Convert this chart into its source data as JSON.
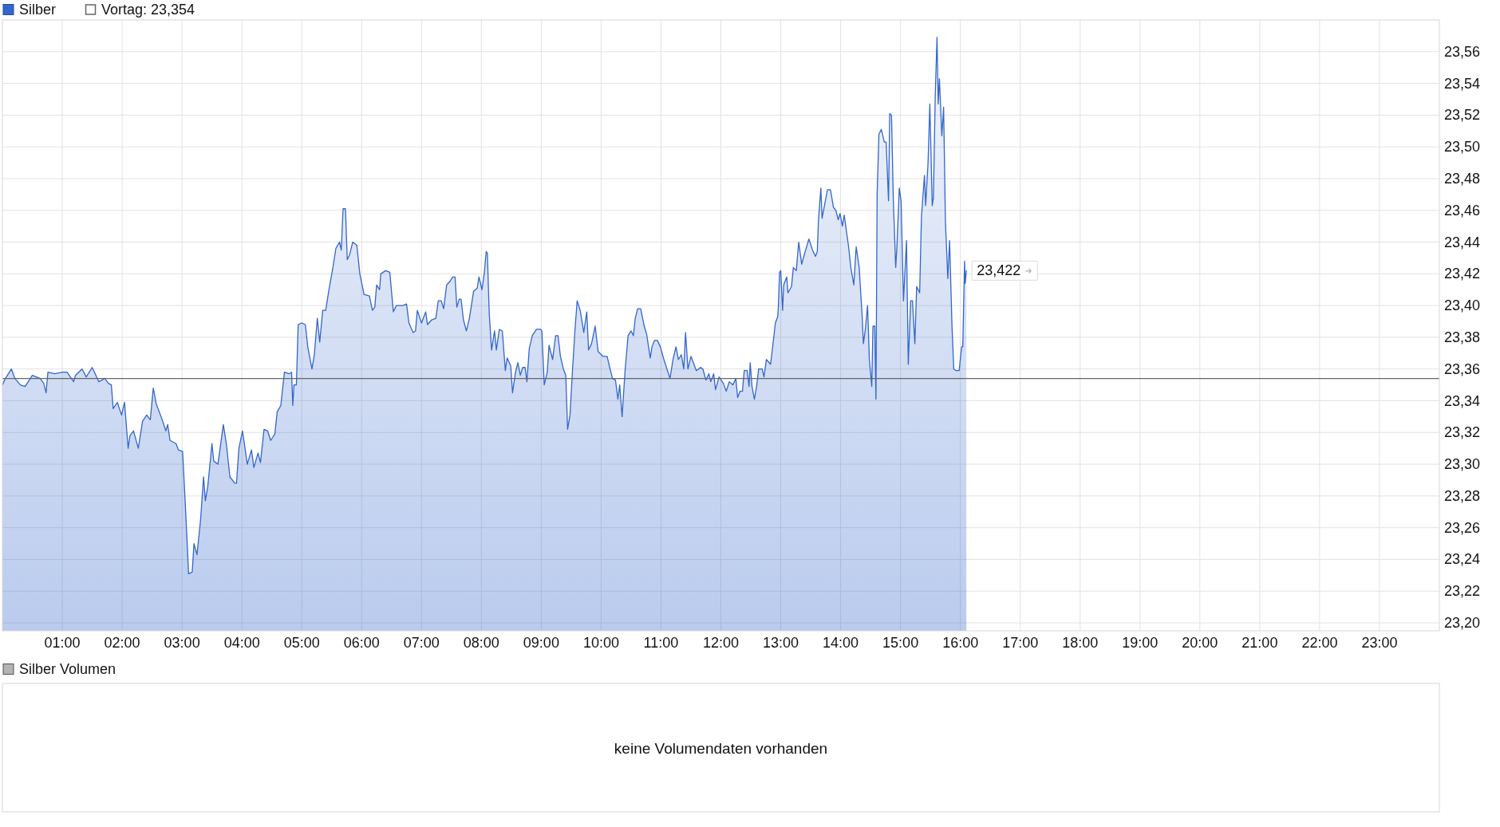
{
  "chart_data": [
    {
      "type": "area",
      "legend": "top left",
      "grid": true,
      "x": [
        0,
        0.05,
        0.15,
        0.21,
        0.3,
        0.38,
        0.5,
        0.63,
        0.69,
        0.73,
        0.76,
        0.87,
        1.01,
        1.08,
        1.19,
        1.22,
        1.33,
        1.4,
        1.5,
        1.61,
        1.71,
        1.77,
        1.82,
        1.85,
        1.92,
        1.99,
        2.04,
        2.1,
        2.13,
        2.19,
        2.27,
        2.34,
        2.41,
        2.47,
        2.52,
        2.57,
        2.66,
        2.73,
        2.76,
        2.8,
        2.9,
        2.94,
        3.01,
        3.06,
        3.11,
        3.17,
        3.2,
        3.25,
        3.31,
        3.36,
        3.39,
        3.43,
        3.5,
        3.53,
        3.6,
        3.69,
        3.74,
        3.8,
        3.88,
        3.91,
        3.95,
        4.01,
        4.06,
        4.09,
        4.16,
        4.2,
        4.27,
        4.31,
        4.37,
        4.43,
        4.48,
        4.55,
        4.59,
        4.65,
        4.71,
        4.79,
        4.83,
        4.85,
        4.87,
        4.91,
        4.94,
        5,
        5.06,
        5.1,
        5.17,
        5.21,
        5.26,
        5.3,
        5.35,
        5.4,
        5.45,
        5.52,
        5.57,
        5.63,
        5.66,
        5.69,
        5.73,
        5.76,
        5.8,
        5.85,
        5.92,
        5.97,
        6.04,
        6.13,
        6.18,
        6.22,
        6.25,
        6.3,
        6.32,
        6.4,
        6.47,
        6.53,
        6.58,
        6.69,
        6.75,
        6.79,
        6.86,
        6.9,
        6.93,
        7,
        7.07,
        7.1,
        7.17,
        7.24,
        7.28,
        7.33,
        7.37,
        7.42,
        7.47,
        7.52,
        7.56,
        7.59,
        7.63,
        7.66,
        7.7,
        7.75,
        7.8,
        7.87,
        7.93,
        7.96,
        8.01,
        8.05,
        8.08,
        8.1,
        8.13,
        8.17,
        8.22,
        8.25,
        8.3,
        8.35,
        8.4,
        8.43,
        8.49,
        8.52,
        8.57,
        8.61,
        8.65,
        8.69,
        8.73,
        8.76,
        8.8,
        8.85,
        8.92,
        8.99,
        9.01,
        9.05,
        9.1,
        9.13,
        9.19,
        9.24,
        9.28,
        9.32,
        9.37,
        9.41,
        9.44,
        9.48,
        9.52,
        9.56,
        9.6,
        9.65,
        9.71,
        9.76,
        9.79,
        9.84,
        9.9,
        9.95,
        10.03,
        10.1,
        10.15,
        10.19,
        10.24,
        10.28,
        10.31,
        10.35,
        10.4,
        10.45,
        10.5,
        10.54,
        10.57,
        10.61,
        10.66,
        10.72,
        10.76,
        10.82,
        10.85,
        10.89,
        10.94,
        10.99,
        11.04,
        11.1,
        11.15,
        11.2,
        11.25,
        11.29,
        11.34,
        11.38,
        11.41,
        11.45,
        11.5,
        11.55,
        11.59,
        11.66,
        11.7,
        11.75,
        11.8,
        11.83,
        11.88,
        11.91,
        11.97,
        12.04,
        12.09,
        12.14,
        12.2,
        12.25,
        12.28,
        12.32,
        12.36,
        12.39,
        12.44,
        12.47,
        12.49,
        12.52,
        12.56,
        12.6,
        12.63,
        12.69,
        12.72,
        12.76,
        12.83,
        12.88,
        12.91,
        12.95,
        12.96,
        12.98,
        13,
        13.03,
        13.05,
        13.1,
        13.12,
        13.18,
        13.21,
        13.26,
        13.3,
        13.35,
        13.4,
        13.47,
        13.53,
        13.58,
        13.61,
        13.63,
        13.67,
        13.69,
        13.73,
        13.78,
        13.83,
        13.88,
        13.92,
        13.96,
        13.99,
        14.03,
        14.06,
        14.1,
        14.13,
        14.17,
        14.22,
        14.26,
        14.31,
        14.36,
        14.38,
        14.41,
        14.45,
        14.48,
        14.52,
        14.54,
        14.57,
        14.59,
        14.61,
        14.64,
        14.68,
        14.73,
        14.76,
        14.8,
        14.82,
        14.85,
        14.88,
        14.92,
        14.94,
        14.98,
        15.01,
        15.05,
        15.1,
        15.13,
        15.17,
        15.2,
        15.24,
        15.27,
        15.32,
        15.35,
        15.4,
        15.42,
        15.46,
        15.49,
        15.53,
        15.55,
        15.58,
        15.61,
        15.63,
        15.65,
        15.69,
        15.72,
        15.75,
        15.79,
        15.82,
        15.86,
        15.89,
        15.93,
        15.98,
        16.02,
        16.04,
        16.07,
        16.08,
        16.1
      ],
      "series": [
        {
          "name": "Silber",
          "color": "#3366cc",
          "values": [
            23.35,
            23.354,
            23.36,
            23.354,
            23.35,
            23.349,
            23.356,
            23.354,
            23.351,
            23.345,
            23.358,
            23.357,
            23.358,
            23.358,
            23.352,
            23.356,
            23.36,
            23.355,
            23.361,
            23.352,
            23.354,
            23.351,
            23.35,
            23.335,
            23.339,
            23.331,
            23.339,
            23.31,
            23.318,
            23.321,
            23.31,
            23.327,
            23.331,
            23.328,
            23.348,
            23.338,
            23.329,
            23.321,
            23.325,
            23.315,
            23.313,
            23.309,
            23.308,
            23.271,
            23.231,
            23.232,
            23.25,
            23.243,
            23.265,
            23.292,
            23.277,
            23.286,
            23.313,
            23.302,
            23.3,
            23.325,
            23.313,
            23.292,
            23.288,
            23.288,
            23.31,
            23.321,
            23.308,
            23.3,
            23.309,
            23.298,
            23.307,
            23.301,
            23.322,
            23.321,
            23.315,
            23.319,
            23.333,
            23.337,
            23.358,
            23.357,
            23.358,
            23.337,
            23.35,
            23.35,
            23.388,
            23.389,
            23.388,
            23.374,
            23.36,
            23.369,
            23.392,
            23.377,
            23.397,
            23.397,
            23.409,
            23.424,
            23.436,
            23.44,
            23.435,
            23.461,
            23.461,
            23.429,
            23.432,
            23.44,
            23.438,
            23.42,
            23.407,
            23.406,
            23.397,
            23.399,
            23.413,
            23.41,
            23.42,
            23.422,
            23.421,
            23.396,
            23.4,
            23.4,
            23.401,
            23.389,
            23.383,
            23.384,
            23.397,
            23.389,
            23.396,
            23.388,
            23.391,
            23.392,
            23.403,
            23.403,
            23.398,
            23.413,
            23.415,
            23.418,
            23.418,
            23.399,
            23.404,
            23.404,
            23.391,
            23.384,
            23.392,
            23.409,
            23.411,
            23.418,
            23.41,
            23.421,
            23.434,
            23.433,
            23.396,
            23.372,
            23.384,
            23.372,
            23.385,
            23.384,
            23.359,
            23.367,
            23.362,
            23.345,
            23.358,
            23.364,
            23.356,
            23.361,
            23.361,
            23.352,
            23.373,
            23.381,
            23.385,
            23.385,
            23.384,
            23.35,
            23.358,
            23.375,
            23.366,
            23.381,
            23.381,
            23.368,
            23.36,
            23.356,
            23.322,
            23.331,
            23.358,
            23.383,
            23.403,
            23.397,
            23.383,
            23.396,
            23.372,
            23.376,
            23.387,
            23.371,
            23.368,
            23.368,
            23.36,
            23.354,
            23.353,
            23.341,
            23.35,
            23.33,
            23.359,
            23.381,
            23.384,
            23.381,
            23.392,
            23.398,
            23.398,
            23.387,
            23.382,
            23.367,
            23.374,
            23.378,
            23.378,
            23.374,
            23.367,
            23.36,
            23.354,
            23.366,
            23.374,
            23.366,
            23.369,
            23.36,
            23.383,
            23.36,
            23.368,
            23.363,
            23.359,
            23.361,
            23.36,
            23.353,
            23.357,
            23.352,
            23.357,
            23.347,
            23.355,
            23.351,
            23.346,
            23.352,
            23.35,
            23.354,
            23.342,
            23.346,
            23.346,
            23.359,
            23.359,
            23.349,
            23.364,
            23.349,
            23.341,
            23.35,
            23.36,
            23.36,
            23.355,
            23.366,
            23.363,
            23.379,
            23.389,
            23.393,
            23.399,
            23.421,
            23.422,
            23.397,
            23.413,
            23.418,
            23.408,
            23.412,
            23.424,
            23.422,
            23.44,
            23.426,
            23.433,
            23.442,
            23.435,
            23.431,
            23.434,
            23.454,
            23.474,
            23.455,
            23.463,
            23.473,
            23.473,
            23.462,
            23.46,
            23.454,
            23.458,
            23.45,
            23.457,
            23.446,
            23.438,
            23.424,
            23.413,
            23.437,
            23.424,
            23.393,
            23.376,
            23.384,
            23.4,
            23.366,
            23.349,
            23.387,
            23.387,
            23.341,
            23.471,
            23.508,
            23.511,
            23.503,
            23.503,
            23.466,
            23.521,
            23.52,
            23.467,
            23.424,
            23.437,
            23.474,
            23.466,
            23.403,
            23.441,
            23.363,
            23.403,
            23.403,
            23.376,
            23.412,
            23.408,
            23.456,
            23.482,
            23.463,
            23.49,
            23.527,
            23.463,
            23.468,
            23.532,
            23.569,
            23.527,
            23.543,
            23.507,
            23.525,
            23.453,
            23.417,
            23.441,
            23.387,
            23.36,
            23.359,
            23.359,
            23.374,
            23.374,
            23.428,
            23.414,
            23.422
          ]
        }
      ],
      "xlim": [
        0,
        24
      ],
      "xticks": [
        {
          "value": 1,
          "label": "01:00"
        },
        {
          "value": 2,
          "label": "02:00"
        },
        {
          "value": 3,
          "label": "03:00"
        },
        {
          "value": 4,
          "label": "04:00"
        },
        {
          "value": 5,
          "label": "05:00"
        },
        {
          "value": 6,
          "label": "06:00"
        },
        {
          "value": 7,
          "label": "07:00"
        },
        {
          "value": 8,
          "label": "08:00"
        },
        {
          "value": 9,
          "label": "09:00"
        },
        {
          "value": 10,
          "label": "10:00"
        },
        {
          "value": 11,
          "label": "11:00"
        },
        {
          "value": 12,
          "label": "12:00"
        },
        {
          "value": 13,
          "label": "13:00"
        },
        {
          "value": 14,
          "label": "14:00"
        },
        {
          "value": 15,
          "label": "15:00"
        },
        {
          "value": 16,
          "label": "16:00"
        },
        {
          "value": 17,
          "label": "17:00"
        },
        {
          "value": 18,
          "label": "18:00"
        },
        {
          "value": 19,
          "label": "19:00"
        },
        {
          "value": 20,
          "label": "20:00"
        },
        {
          "value": 21,
          "label": "21:00"
        },
        {
          "value": 22,
          "label": "22:00"
        },
        {
          "value": 23,
          "label": "23:00"
        }
      ],
      "ylim": [
        23.195,
        23.58
      ],
      "yticks": [
        {
          "value": 23.2,
          "label": "23,20"
        },
        {
          "value": 23.22,
          "label": "23,22"
        },
        {
          "value": 23.24,
          "label": "23,24"
        },
        {
          "value": 23.26,
          "label": "23,26"
        },
        {
          "value": 23.28,
          "label": "23,28"
        },
        {
          "value": 23.3,
          "label": "23,30"
        },
        {
          "value": 23.32,
          "label": "23,32"
        },
        {
          "value": 23.34,
          "label": "23,34"
        },
        {
          "value": 23.36,
          "label": "23,36"
        },
        {
          "value": 23.38,
          "label": "23,38"
        },
        {
          "value": 23.4,
          "label": "23,40"
        },
        {
          "value": 23.42,
          "label": "23,42"
        },
        {
          "value": 23.44,
          "label": "23,44"
        },
        {
          "value": 23.46,
          "label": "23,46"
        },
        {
          "value": 23.48,
          "label": "23,48"
        },
        {
          "value": 23.5,
          "label": "23,50"
        },
        {
          "value": 23.52,
          "label": "23,52"
        },
        {
          "value": 23.54,
          "label": "23,54"
        },
        {
          "value": 23.56,
          "label": "23,56"
        }
      ],
      "ref_lines": [
        {
          "axis": "y",
          "value": 23.354,
          "label": "Vortag: 23,354",
          "color": "#666666"
        }
      ],
      "annotations": [
        {
          "text": "23,422",
          "x": 16.1,
          "y": 23.422
        }
      ]
    },
    {
      "type": "other",
      "title": "Silber Volumen",
      "annotations": [
        "keine Volumendaten vorhanden"
      ]
    }
  ]
}
